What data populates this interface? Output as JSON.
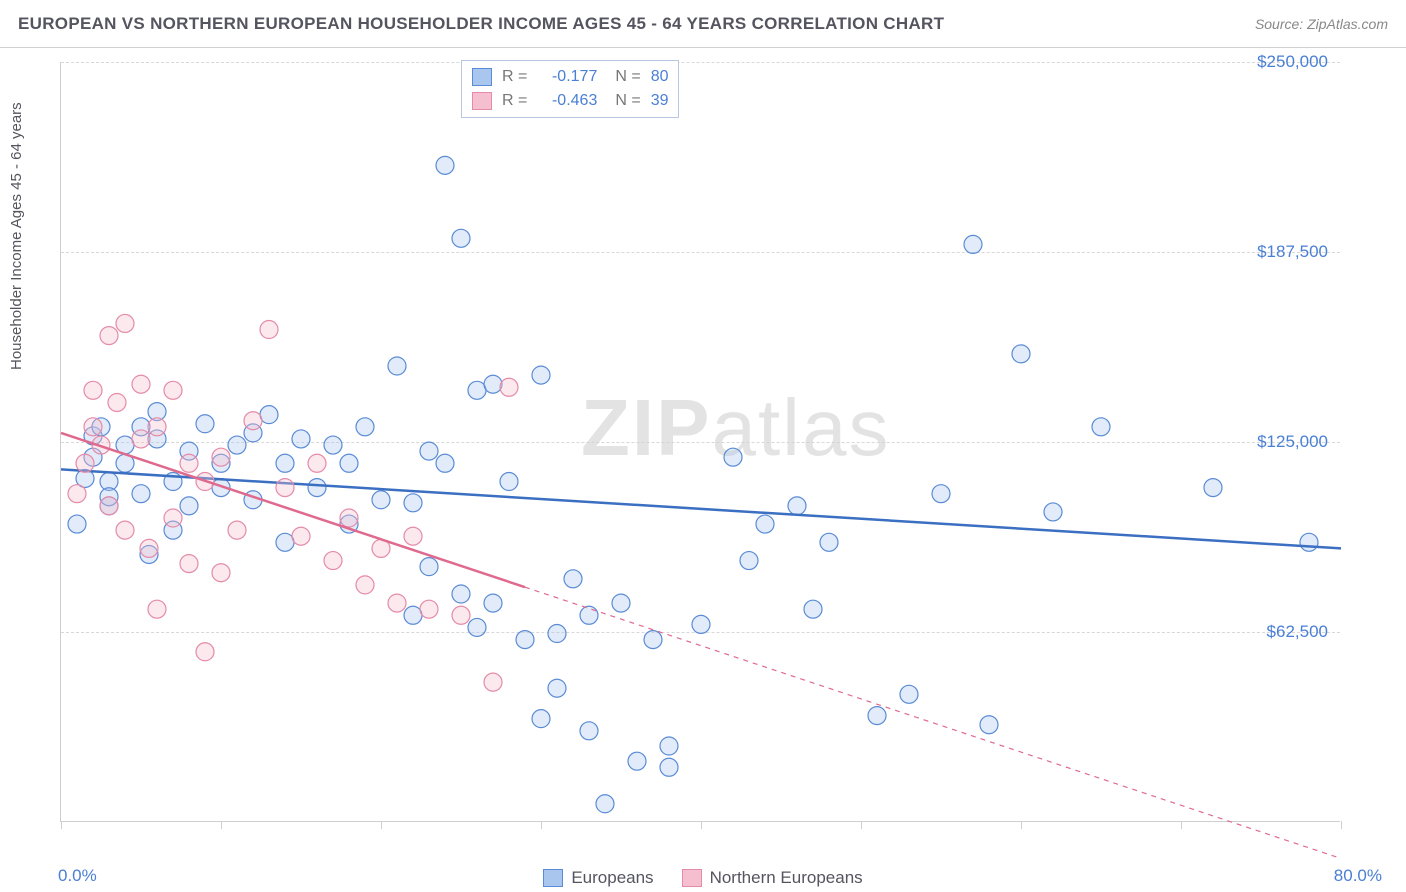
{
  "title": "EUROPEAN VS NORTHERN EUROPEAN HOUSEHOLDER INCOME AGES 45 - 64 YEARS CORRELATION CHART",
  "source_label": "Source: ZipAtlas.com",
  "ylabel": "Householder Income Ages 45 - 64 years",
  "watermark": {
    "bold": "ZIP",
    "rest": "atlas"
  },
  "chart": {
    "type": "scatter",
    "xlim": [
      0,
      80
    ],
    "ylim": [
      0,
      250000
    ],
    "x_unit": "%",
    "y_unit": "$",
    "background_color": "#ffffff",
    "grid_color": "#d8d8d8",
    "y_gridlines": [
      62500,
      125000,
      187500,
      250000
    ],
    "y_tick_labels": [
      "$62,500",
      "$125,000",
      "$187,500",
      "$250,000"
    ],
    "y_tick_color": "#4a7fd6",
    "x_bottom_ticks": [
      0,
      10,
      20,
      30,
      40,
      50,
      60,
      70,
      80
    ],
    "xlim_labels": {
      "min": "0.0%",
      "max": "80.0%",
      "color": "#4a7fd6"
    },
    "marker_radius": 9,
    "marker_stroke_width": 1.2,
    "marker_fill_opacity": 0.35,
    "trend_line_width": 2.5
  },
  "legend_top": {
    "rows": [
      {
        "swatch_fill": "#a9c6ef",
        "swatch_stroke": "#5a8bd6",
        "r_label": "R =",
        "r_value": "-0.177",
        "n_label": "N =",
        "n_value": "80"
      },
      {
        "swatch_fill": "#f5bfcf",
        "swatch_stroke": "#e58aa8",
        "r_label": "R =",
        "r_value": "-0.463",
        "n_label": "N =",
        "n_value": "39"
      }
    ],
    "value_color": "#4a7fd6",
    "label_color": "#777"
  },
  "legend_bottom": {
    "items": [
      {
        "swatch_fill": "#a9c6ef",
        "swatch_stroke": "#5a8bd6",
        "label": "Europeans"
      },
      {
        "swatch_fill": "#f5bfcf",
        "swatch_stroke": "#e58aa8",
        "label": "Northern Europeans"
      }
    ]
  },
  "series": [
    {
      "name": "Europeans",
      "fill": "#a9c6ef",
      "stroke": "#5a8bd6",
      "trend_color": "#3b6fc2",
      "trend": {
        "x1": 0,
        "y1": 116000,
        "x2": 80,
        "y2": 90000,
        "dash_from_x": null
      },
      "points": [
        [
          1,
          98000
        ],
        [
          1.5,
          113000
        ],
        [
          2,
          127000
        ],
        [
          2,
          120000
        ],
        [
          2.5,
          130000
        ],
        [
          3,
          104000
        ],
        [
          3,
          112000
        ],
        [
          3,
          107000
        ],
        [
          4,
          124000
        ],
        [
          4,
          118000
        ],
        [
          5,
          130000
        ],
        [
          5,
          108000
        ],
        [
          5.5,
          88000
        ],
        [
          6,
          126000
        ],
        [
          6,
          135000
        ],
        [
          7,
          112000
        ],
        [
          7,
          96000
        ],
        [
          8,
          122000
        ],
        [
          8,
          104000
        ],
        [
          9,
          131000
        ],
        [
          10,
          118000
        ],
        [
          10,
          110000
        ],
        [
          11,
          124000
        ],
        [
          12,
          128000
        ],
        [
          12,
          106000
        ],
        [
          13,
          134000
        ],
        [
          14,
          118000
        ],
        [
          14,
          92000
        ],
        [
          15,
          126000
        ],
        [
          16,
          110000
        ],
        [
          17,
          124000
        ],
        [
          18,
          98000
        ],
        [
          18,
          118000
        ],
        [
          19,
          130000
        ],
        [
          20,
          106000
        ],
        [
          21,
          150000
        ],
        [
          22,
          105000
        ],
        [
          22,
          68000
        ],
        [
          23,
          122000
        ],
        [
          23,
          84000
        ],
        [
          24,
          216000
        ],
        [
          24,
          118000
        ],
        [
          25,
          192000
        ],
        [
          25,
          75000
        ],
        [
          26,
          142000
        ],
        [
          26,
          64000
        ],
        [
          27,
          144000
        ],
        [
          27,
          72000
        ],
        [
          28,
          112000
        ],
        [
          29,
          60000
        ],
        [
          30,
          147000
        ],
        [
          30,
          34000
        ],
        [
          31,
          44000
        ],
        [
          31,
          62000
        ],
        [
          32,
          80000
        ],
        [
          33,
          68000
        ],
        [
          33,
          30000
        ],
        [
          34,
          6000
        ],
        [
          35,
          72000
        ],
        [
          36,
          20000
        ],
        [
          37,
          60000
        ],
        [
          38,
          25000
        ],
        [
          38,
          18000
        ],
        [
          40,
          65000
        ],
        [
          42,
          120000
        ],
        [
          43,
          86000
        ],
        [
          44,
          98000
        ],
        [
          46,
          104000
        ],
        [
          47,
          70000
        ],
        [
          48,
          92000
        ],
        [
          51,
          35000
        ],
        [
          53,
          42000
        ],
        [
          55,
          108000
        ],
        [
          57,
          190000
        ],
        [
          58,
          32000
        ],
        [
          60,
          154000
        ],
        [
          62,
          102000
        ],
        [
          65,
          130000
        ],
        [
          72,
          110000
        ],
        [
          78,
          92000
        ]
      ]
    },
    {
      "name": "Northern Europeans",
      "fill": "#f5bfcf",
      "stroke": "#e58aa8",
      "trend_color": "#e06a8d",
      "trend": {
        "x1": 0,
        "y1": 128000,
        "x2": 80,
        "y2": -12000,
        "dash_from_x": 29
      },
      "points": [
        [
          1,
          108000
        ],
        [
          1.5,
          118000
        ],
        [
          2,
          130000
        ],
        [
          2,
          142000
        ],
        [
          2.5,
          124000
        ],
        [
          3,
          160000
        ],
        [
          3,
          104000
        ],
        [
          3.5,
          138000
        ],
        [
          4,
          164000
        ],
        [
          4,
          96000
        ],
        [
          5,
          126000
        ],
        [
          5,
          144000
        ],
        [
          5.5,
          90000
        ],
        [
          6,
          130000
        ],
        [
          6,
          70000
        ],
        [
          7,
          142000
        ],
        [
          7,
          100000
        ],
        [
          8,
          118000
        ],
        [
          8,
          85000
        ],
        [
          9,
          112000
        ],
        [
          9,
          56000
        ],
        [
          10,
          120000
        ],
        [
          10,
          82000
        ],
        [
          11,
          96000
        ],
        [
          12,
          132000
        ],
        [
          13,
          162000
        ],
        [
          14,
          110000
        ],
        [
          15,
          94000
        ],
        [
          16,
          118000
        ],
        [
          17,
          86000
        ],
        [
          18,
          100000
        ],
        [
          19,
          78000
        ],
        [
          20,
          90000
        ],
        [
          21,
          72000
        ],
        [
          22,
          94000
        ],
        [
          23,
          70000
        ],
        [
          25,
          68000
        ],
        [
          27,
          46000
        ],
        [
          28,
          143000
        ]
      ]
    }
  ]
}
